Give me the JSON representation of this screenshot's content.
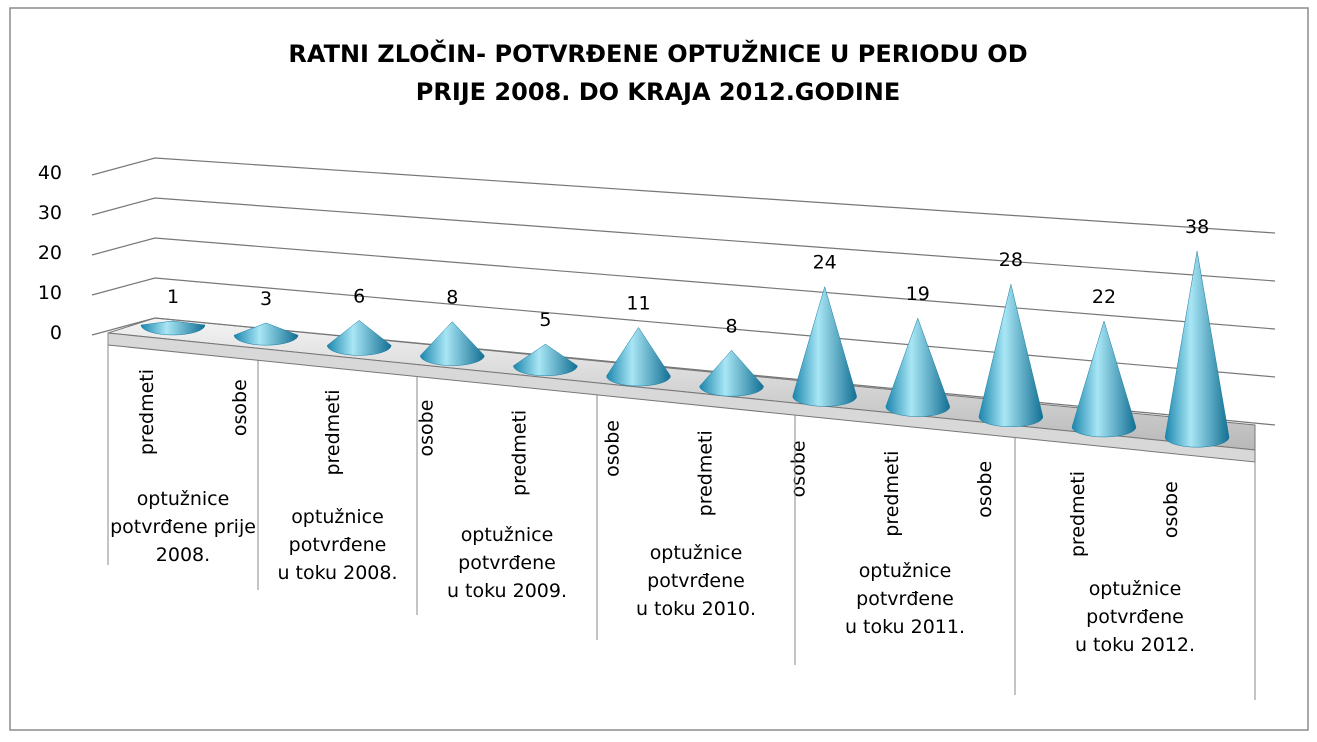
{
  "chart_data": {
    "type": "cone",
    "title": [
      "RATNI ZLOČIN- POTVRĐENE OPTUŽNICE  U PERIODU OD",
      "PRIJE 2008. DO KRAJA 2012.GODINE"
    ],
    "categories": [
      "predmeti",
      "osobe",
      "predmeti",
      "osobe",
      "predmeti",
      "osobe",
      "predmeti",
      "osobe",
      "predmeti",
      "osobe",
      "predmeti",
      "osobe"
    ],
    "groups": [
      [
        "optužnice",
        "potvrđene prije",
        "2008."
      ],
      [
        "optužnice",
        "potvrđene",
        "u toku 2008."
      ],
      [
        "optužnice",
        "potvrđene",
        "u toku 2009."
      ],
      [
        "optužnice",
        "potvrđene",
        "u toku 2010."
      ],
      [
        "optužnice",
        "potvrđene",
        "u toku 2011."
      ],
      [
        "optužnice",
        "potvrđene",
        "u toku 2012."
      ]
    ],
    "values": [
      1,
      3,
      6,
      8,
      5,
      11,
      8,
      24,
      19,
      28,
      22,
      38
    ],
    "color": "#2aa3c8",
    "ylim": [
      0,
      40
    ],
    "yticks": [
      0,
      10,
      20,
      30,
      40
    ],
    "grid": true
  }
}
